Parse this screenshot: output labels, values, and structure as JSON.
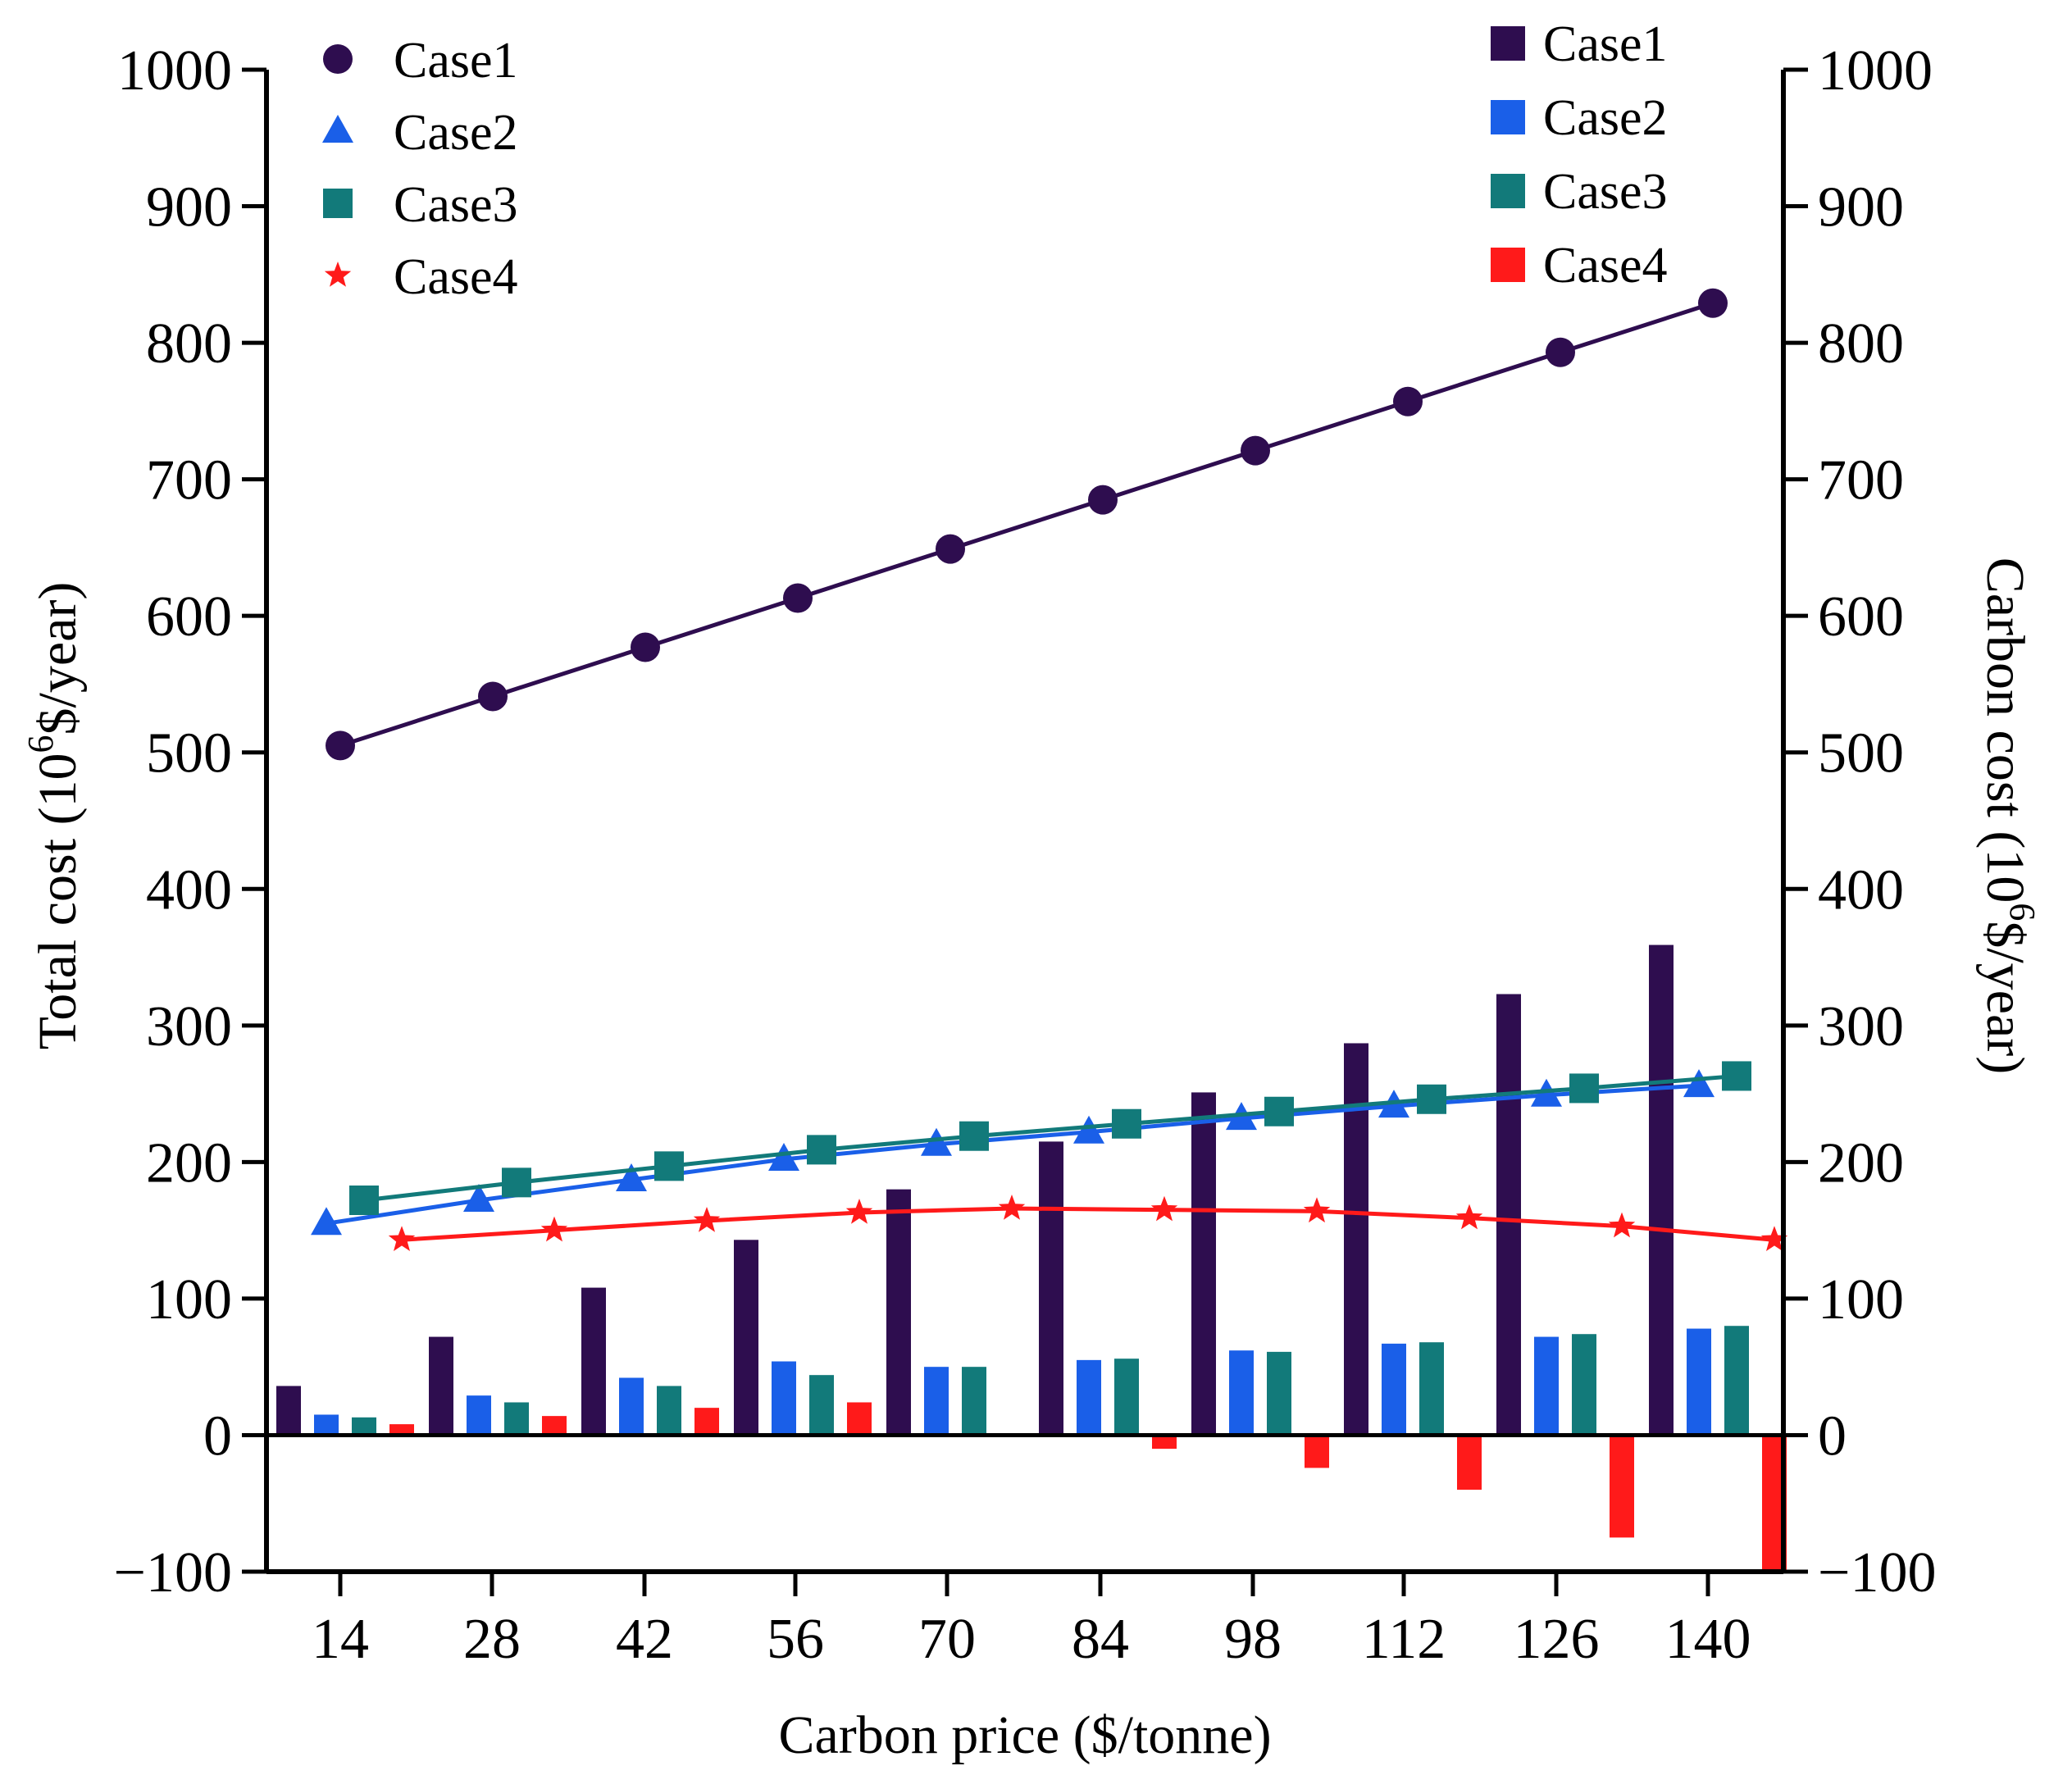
{
  "chart_data": {
    "type": "bar+line",
    "xlabel": "Carbon price ($/tonne)",
    "ylabel_left": {
      "base": "Total cost (10",
      "sup": "6",
      "tail": "$/year)"
    },
    "ylabel_right": {
      "base": "Carbon cost (10",
      "sup": "6",
      "tail": "$/year)"
    },
    "categories": [
      "14",
      "28",
      "42",
      "56",
      "70",
      "84",
      "98",
      "112",
      "126",
      "140"
    ],
    "ylim": [
      -100,
      1000
    ],
    "yticks": [
      "1000",
      "900",
      "800",
      "700",
      "600",
      "500",
      "400",
      "300",
      "200",
      "100",
      "0",
      "−100"
    ],
    "ytick_values": [
      1000,
      900,
      800,
      700,
      600,
      500,
      400,
      300,
      200,
      100,
      0,
      -100
    ],
    "line_series": [
      {
        "name": "Case1",
        "marker": "circle",
        "color": "#2e0d4f",
        "values": [
          505,
          541,
          577,
          613,
          649,
          685,
          721,
          757,
          793,
          829
        ]
      },
      {
        "name": "Case2",
        "marker": "triangle",
        "color": "#1a5fe8",
        "values": [
          155,
          172,
          187,
          202,
          213,
          222,
          232,
          241,
          249,
          256
        ]
      },
      {
        "name": "Case3",
        "marker": "square",
        "color": "#127a7a",
        "values": [
          172,
          185,
          197,
          209,
          219,
          228,
          237,
          246,
          254,
          263
        ]
      },
      {
        "name": "Case4",
        "marker": "star",
        "color": "#ff1a1a",
        "values": [
          143,
          150,
          157,
          163,
          166,
          165,
          164,
          159,
          153,
          143
        ]
      }
    ],
    "bar_series": [
      {
        "name": "Case1",
        "color": "#2e0d4f",
        "values": [
          36,
          72,
          108,
          143,
          180,
          215,
          251,
          287,
          323,
          359
        ]
      },
      {
        "name": "Case2",
        "color": "#1a5fe8",
        "values": [
          15,
          29,
          42,
          54,
          50,
          55,
          62,
          67,
          72,
          78
        ]
      },
      {
        "name": "Case3",
        "color": "#127a7a",
        "values": [
          13,
          24,
          36,
          44,
          50,
          56,
          61,
          68,
          74,
          80
        ]
      },
      {
        "name": "Case4",
        "color": "#ff1a1a",
        "values": [
          8,
          14,
          20,
          24,
          0,
          -10,
          -24,
          -40,
          -75,
          -100
        ]
      }
    ],
    "legend_left": [
      "Case1",
      "Case2",
      "Case3",
      "Case4"
    ],
    "legend_right": [
      "Case1",
      "Case2",
      "Case3",
      "Case4"
    ]
  }
}
